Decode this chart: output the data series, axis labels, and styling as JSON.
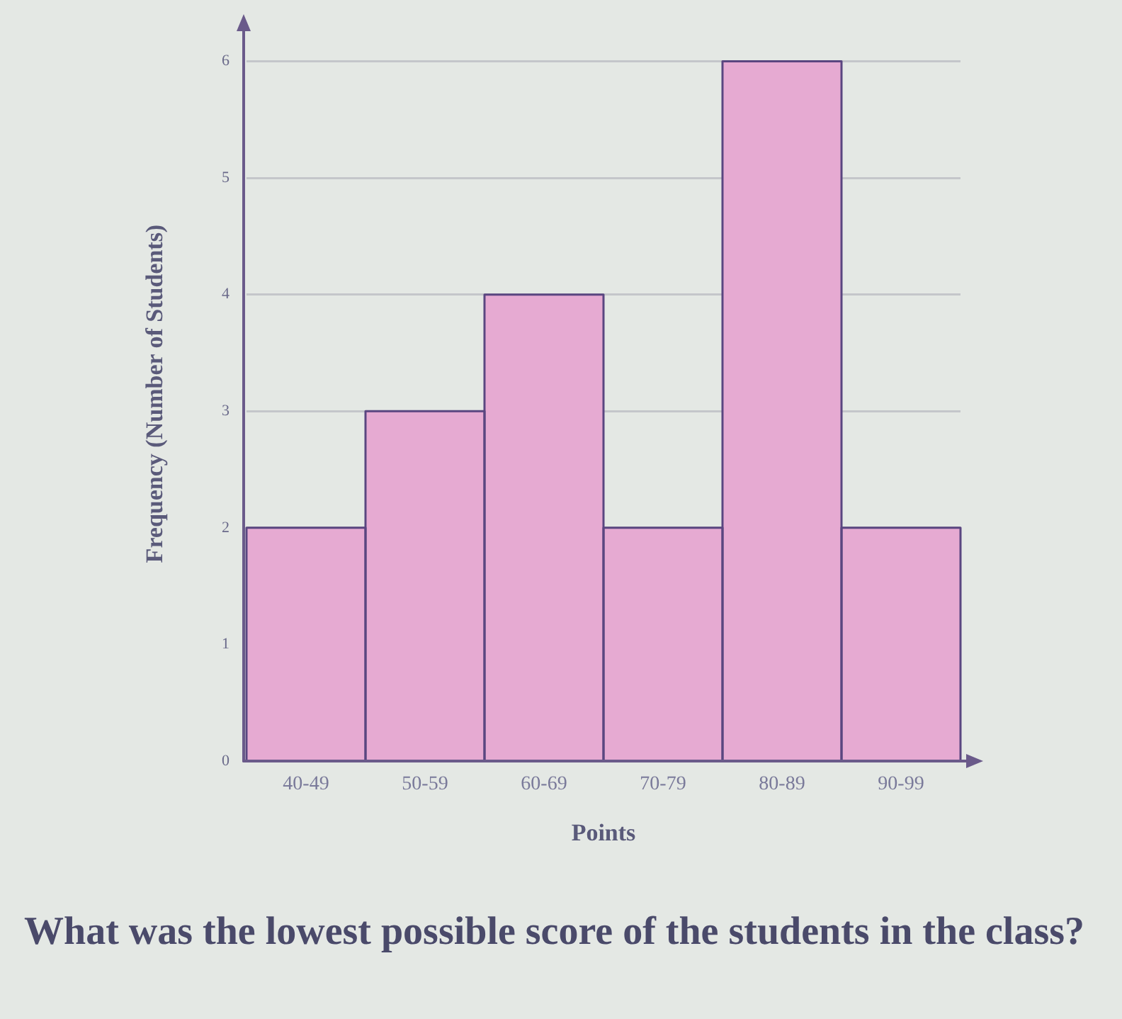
{
  "chart_data": {
    "type": "bar",
    "categories": [
      "40-49",
      "50-59",
      "60-69",
      "70-79",
      "80-89",
      "90-99"
    ],
    "values": [
      2,
      3,
      4,
      2,
      6,
      2
    ],
    "color": "#e6aad2",
    "xlabel": "Points",
    "ylabel": "Frequency (Number of Students)",
    "ylim": [
      0,
      6.3
    ],
    "yticks": [
      0,
      1,
      2,
      3,
      4,
      5,
      6
    ],
    "grid": "y",
    "annotations": [
      "What was the lowest possible score of the students in the class?"
    ]
  }
}
